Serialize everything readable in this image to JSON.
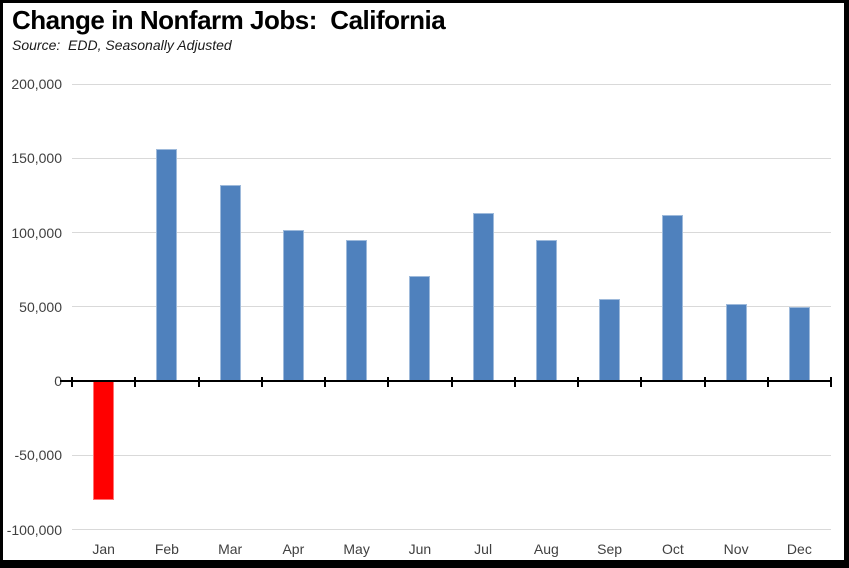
{
  "header": {
    "title": "Change in Nonfarm Jobs:  California",
    "source": "Source:  EDD, Seasonally Adjusted"
  },
  "chart_data": {
    "type": "bar",
    "title": "Change in Nonfarm Jobs: California",
    "subtitle": "Source: EDD, Seasonally Adjusted",
    "xlabel": "",
    "ylabel": "",
    "categories": [
      "Jan",
      "Feb",
      "Mar",
      "Apr",
      "May",
      "Jun",
      "Jul",
      "Aug",
      "Sep",
      "Oct",
      "Nov",
      "Dec"
    ],
    "values": [
      -80000,
      156000,
      132000,
      102000,
      95000,
      71000,
      113000,
      95000,
      55000,
      112000,
      52000,
      50000
    ],
    "ylim": [
      -100000,
      200000
    ],
    "ytick_interval": 50000,
    "yticks": [
      {
        "value": 200000,
        "label": "200,000"
      },
      {
        "value": 150000,
        "label": "150,000"
      },
      {
        "value": 100000,
        "label": "100,000"
      },
      {
        "value": 50000,
        "label": "50,000"
      },
      {
        "value": 0,
        "label": "0"
      },
      {
        "value": -50000,
        "label": "-50,000"
      },
      {
        "value": -100000,
        "label": "-100,000"
      }
    ],
    "grid": true,
    "legend": "none",
    "colors": {
      "positive_bar": "#4F81BD",
      "negative_bar": "#FF0000",
      "gridline": "#D9D9D9",
      "axis": "#000000",
      "tick_label": "#404040"
    }
  }
}
